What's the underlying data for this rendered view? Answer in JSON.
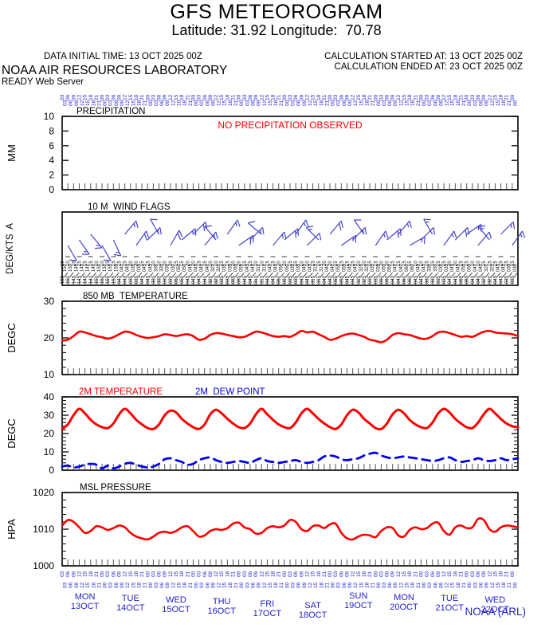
{
  "header": {
    "title": "GFS METEOROGRAM",
    "subtitle": "Latitude: 31.92 Longitude:  70.78",
    "data_initial_time": "DATA INITIAL TIME: 13 OCT 2025 00Z",
    "calc_started": "CALCULATION STARTED AT: 13 OCT 2025 00Z",
    "calc_ended": "CALCULATION ENDED AT: 23 OCT 2025 00Z",
    "org": "NOAA AIR RESOURCES LABORATORY",
    "server": "READY Web Server"
  },
  "footer": {
    "credit": "NOAA (ARL)"
  },
  "colors": {
    "red": "#ff0000",
    "blue_text": "#2222cc",
    "blue_line": "#0000ee",
    "barb_blue": "#4343cf",
    "axis": "#000000",
    "xtick": "#555555"
  },
  "xaxis": {
    "hours_start": 0,
    "hours_end": 240,
    "step_hours": 3,
    "hour_cycle": [
      "03",
      "06",
      "09",
      "12",
      "15",
      "18",
      "21",
      "00"
    ],
    "days": [
      {
        "day": "MON",
        "date": "13OCT"
      },
      {
        "day": "TUE",
        "date": "14OCT"
      },
      {
        "day": "WED",
        "date": "15OCT"
      },
      {
        "day": "THU",
        "date": "16OCT"
      },
      {
        "day": "FRI",
        "date": "17OCT"
      },
      {
        "day": "SAT",
        "date": "18OCT"
      },
      {
        "day": "SUN",
        "date": "19OCT"
      },
      {
        "day": "MON",
        "date": "20OCT"
      },
      {
        "day": "TUE",
        "date": "21OCT"
      },
      {
        "day": "WED",
        "date": "22OCT"
      }
    ]
  },
  "chart_data": [
    {
      "type": "line",
      "panel": "precip",
      "title": "PRECIPITATION",
      "ylabel": "MM",
      "ylim": [
        0,
        10
      ],
      "yticks": [
        0,
        2,
        4,
        6,
        8,
        10
      ],
      "yminor": null,
      "annotation": "NO PRECIPITATION OBSERVED",
      "no_precipitation": true,
      "series": []
    },
    {
      "type": "wind-barbs",
      "panel": "wind",
      "title": "10 M  WIND FLAGS",
      "ylabel": "DEG/KTS  A",
      "barb_step_hours": 6,
      "barbs_format": "[direction_deg_from, speed_kts]",
      "barbs": [
        [
          150,
          10
        ],
        [
          145,
          15
        ],
        [
          140,
          15
        ],
        [
          150,
          10
        ],
        [
          155,
          15
        ],
        [
          40,
          15
        ],
        [
          35,
          20
        ],
        [
          45,
          15
        ],
        [
          330,
          10
        ],
        [
          30,
          20
        ],
        [
          50,
          15
        ],
        [
          45,
          20
        ],
        [
          40,
          15
        ],
        [
          320,
          10
        ],
        [
          35,
          15
        ],
        [
          55,
          20
        ],
        [
          45,
          15
        ],
        [
          310,
          10
        ],
        [
          40,
          15
        ],
        [
          50,
          20
        ],
        [
          35,
          15
        ],
        [
          45,
          10
        ],
        [
          315,
          15
        ],
        [
          40,
          20
        ],
        [
          55,
          15
        ],
        [
          45,
          15
        ],
        [
          325,
          10
        ],
        [
          35,
          15
        ],
        [
          50,
          20
        ],
        [
          40,
          15
        ],
        [
          60,
          15
        ],
        [
          45,
          10
        ],
        [
          330,
          15
        ],
        [
          35,
          15
        ],
        [
          45,
          20
        ],
        [
          55,
          15
        ],
        [
          40,
          10
        ],
        [
          320,
          15
        ],
        [
          45,
          15
        ],
        [
          35,
          15
        ]
      ]
    },
    {
      "type": "line",
      "panel": "t850",
      "title": "850 MB  TEMPERATURE",
      "ylabel": "DEGC",
      "ylim": [
        10,
        30
      ],
      "yticks": [
        10,
        20,
        30
      ],
      "yminor": 2,
      "series": [
        {
          "name": "850 MB TEMPERATURE",
          "color": "#ff0000",
          "dash": null,
          "values": [
            19.3,
            19.5,
            20.5,
            21.7,
            21.5,
            21,
            20.5,
            20.2,
            19.8,
            20.2,
            21,
            21.7,
            21.5,
            20.8,
            20.3,
            20,
            20.2,
            20.5,
            21,
            20.8,
            20.5,
            20.8,
            21,
            20.5,
            19.5,
            19.8,
            20.8,
            21.3,
            21.2,
            20.8,
            20.5,
            20.2,
            20.3,
            21,
            21.7,
            21.5,
            21,
            20.5,
            20.3,
            20.5,
            20.3,
            21,
            21.9,
            21.5,
            21.7,
            21,
            20.3,
            19.5,
            19.8,
            20.5,
            21,
            21.2,
            20.8,
            20.3,
            19.5,
            19.2,
            18.8,
            19.5,
            20.8,
            21.3,
            21,
            20.8,
            20.3,
            19.8,
            19.8,
            20.5,
            21.5,
            21.7,
            21.3,
            20.8,
            20.3,
            20.5,
            20.3,
            21,
            21.7,
            21.9,
            21.5,
            21.3,
            21.2,
            21,
            20.5
          ]
        }
      ]
    },
    {
      "type": "line",
      "panel": "t2m",
      "title": "2M TEMPERATURE",
      "legend": [
        {
          "label": "2M TEMPERATURE",
          "color": "#ff0000"
        },
        {
          "label": "2M  DEW POINT",
          "color": "#0000ee"
        }
      ],
      "ylabel": "DEGC",
      "ylim": [
        0,
        40
      ],
      "yticks": [
        0,
        10,
        20,
        30,
        40
      ],
      "yminor": 2,
      "series": [
        {
          "name": "2M TEMPERATURE",
          "color": "#ff0000",
          "dash": null,
          "values": [
            22.5,
            25,
            30,
            33.5,
            31,
            27.5,
            25,
            23.5,
            23,
            25.5,
            30.5,
            33.5,
            31,
            27.5,
            25,
            23,
            22.5,
            25,
            30,
            32.5,
            31.5,
            28,
            25.5,
            23.5,
            22.5,
            25,
            30.5,
            33,
            31,
            28,
            25.5,
            23.5,
            23,
            25.5,
            30.5,
            33.5,
            30.5,
            27.5,
            25,
            23.5,
            23,
            26,
            31,
            33.5,
            31,
            28,
            25.5,
            23.5,
            22.5,
            25,
            30,
            33,
            31.5,
            28,
            25.5,
            23,
            22.5,
            25.5,
            30.5,
            33,
            31,
            27.5,
            25,
            23.5,
            23,
            26,
            31,
            33.5,
            31.5,
            28,
            25.5,
            23.5,
            23,
            26,
            30.5,
            33.5,
            31,
            28,
            25.5,
            24,
            23.5
          ]
        },
        {
          "name": "2M DEW POINT",
          "color": "#0000ee",
          "dash": "10 7",
          "values": [
            2,
            2.5,
            1.5,
            2,
            3,
            3.5,
            3,
            1,
            2.5,
            1,
            2,
            3.5,
            4,
            3,
            2,
            1.5,
            2,
            3.5,
            6,
            6.5,
            5.5,
            4.5,
            3,
            3.5,
            5.5,
            6.5,
            7,
            5.5,
            4.5,
            4,
            4.5,
            5,
            4.5,
            4,
            5.5,
            6.5,
            5,
            4.5,
            4,
            4.5,
            5,
            5.5,
            4.5,
            4,
            4.5,
            5.5,
            7.5,
            8,
            7.5,
            6,
            5.5,
            6,
            6.5,
            8,
            9,
            9.5,
            8,
            7,
            6.5,
            7,
            7.5,
            7,
            6.5,
            6,
            5.5,
            5,
            5.5,
            6.5,
            7,
            5.5,
            4.5,
            5,
            5.5,
            6.5,
            5.5,
            5,
            5.5,
            6.5,
            5.5,
            6,
            6.5
          ]
        }
      ]
    },
    {
      "type": "line",
      "panel": "mslp",
      "title": "MSL PRESSURE",
      "ylabel": "HPA",
      "ylim": [
        1000,
        1020
      ],
      "yticks": [
        1000,
        1010,
        1020
      ],
      "yminor": 2,
      "series": [
        {
          "name": "MSL PRESSURE",
          "color": "#ff0000",
          "dash": null,
          "values": [
            1011,
            1012.5,
            1012,
            1010.5,
            1009,
            1009.5,
            1010.8,
            1010.5,
            1009.8,
            1010.3,
            1011,
            1010.5,
            1009,
            1008,
            1007.5,
            1007.2,
            1008,
            1009,
            1009.3,
            1009,
            1009.5,
            1010.5,
            1010.8,
            1009.5,
            1008,
            1008.3,
            1009.5,
            1010,
            1009.8,
            1010.3,
            1011.5,
            1011.8,
            1010.5,
            1010,
            1008.8,
            1009,
            1010.3,
            1010.8,
            1010.5,
            1011,
            1012.5,
            1012,
            1010,
            1009.5,
            1010.8,
            1011,
            1010.3,
            1011.3,
            1011.5,
            1009,
            1007.5,
            1007.2,
            1008,
            1008.5,
            1008.3,
            1007.8,
            1009.5,
            1010.5,
            1010.3,
            1008.3,
            1008,
            1009.8,
            1010.5,
            1010,
            1010.3,
            1011.5,
            1011.8,
            1009.5,
            1008.5,
            1010.5,
            1011,
            1010.3,
            1010.5,
            1012.8,
            1012.5,
            1010,
            1009.3,
            1010.5,
            1011,
            1010.8,
            1010.5
          ]
        }
      ]
    }
  ]
}
